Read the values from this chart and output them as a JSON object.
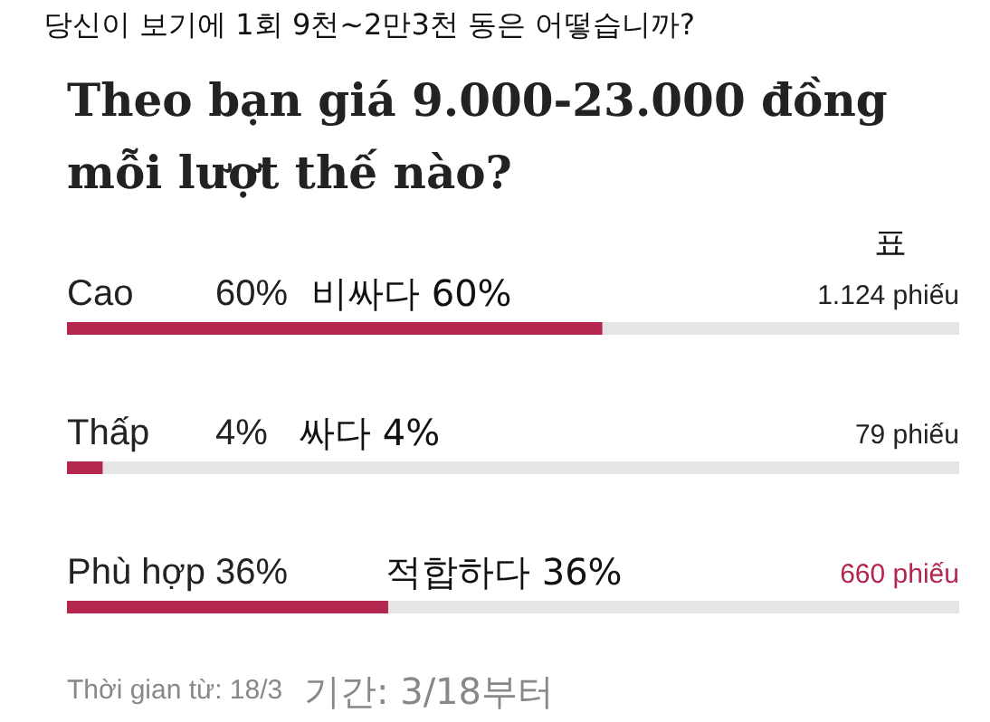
{
  "chart_data": {
    "type": "bar",
    "orientation": "horizontal",
    "tick_labels": false,
    "legend": false,
    "subtitle": "당신이 보기에 1회 9천~2만3천 동은 어떻습니까?",
    "title": "Theo bạn giá 9.000-23.000 đồng mỗi lượt thế nào?",
    "categories": [
      "Cao",
      "Thấp",
      "Phù hợp"
    ],
    "xlim": [
      0,
      100
    ],
    "series": [
      {
        "color": "#b5264f",
        "values": [
          60,
          4,
          36
        ],
        "value_labels": [
          "60%",
          "4%",
          "36%"
        ]
      }
    ],
    "annotations": [
      "표",
      "비싸다 60%",
      "싸다 4%",
      "적합하다 36%",
      "1.124 phiếu",
      "79 phiếu",
      "660 phiếu",
      "Thời gian từ: 18/3",
      "기간: 3/18부터"
    ]
  }
}
